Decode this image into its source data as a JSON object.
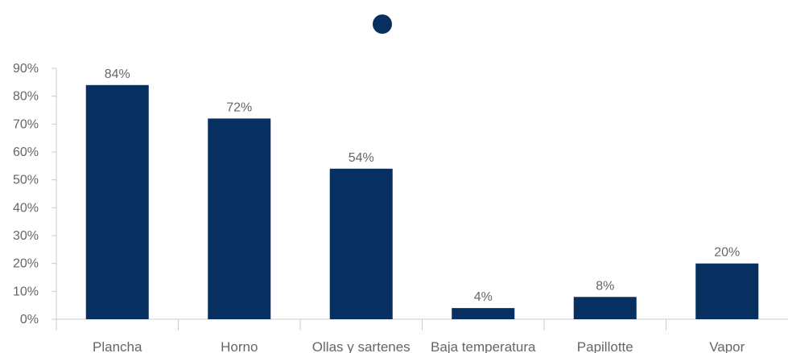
{
  "chart_data": {
    "type": "bar",
    "categories": [
      "Plancha",
      "Horno",
      "Ollas y sartenes",
      "Baja temperatura",
      "Papillotte",
      "Vapor"
    ],
    "series": [
      {
        "values": [
          84,
          72,
          54,
          4,
          8,
          20
        ]
      }
    ],
    "data_labels": [
      "84%",
      "72%",
      "54%",
      "4%",
      "8%",
      "20%"
    ],
    "y_ticks": [
      "0%",
      "10%",
      "20%",
      "30%",
      "40%",
      "50%",
      "60%",
      "70%",
      "80%",
      "90%"
    ],
    "ylim": [
      0,
      90
    ],
    "grid": false,
    "legend": "top-center",
    "colors": {
      "bar": "#072F60",
      "axis": "#cccccc",
      "text": "#666666"
    }
  }
}
